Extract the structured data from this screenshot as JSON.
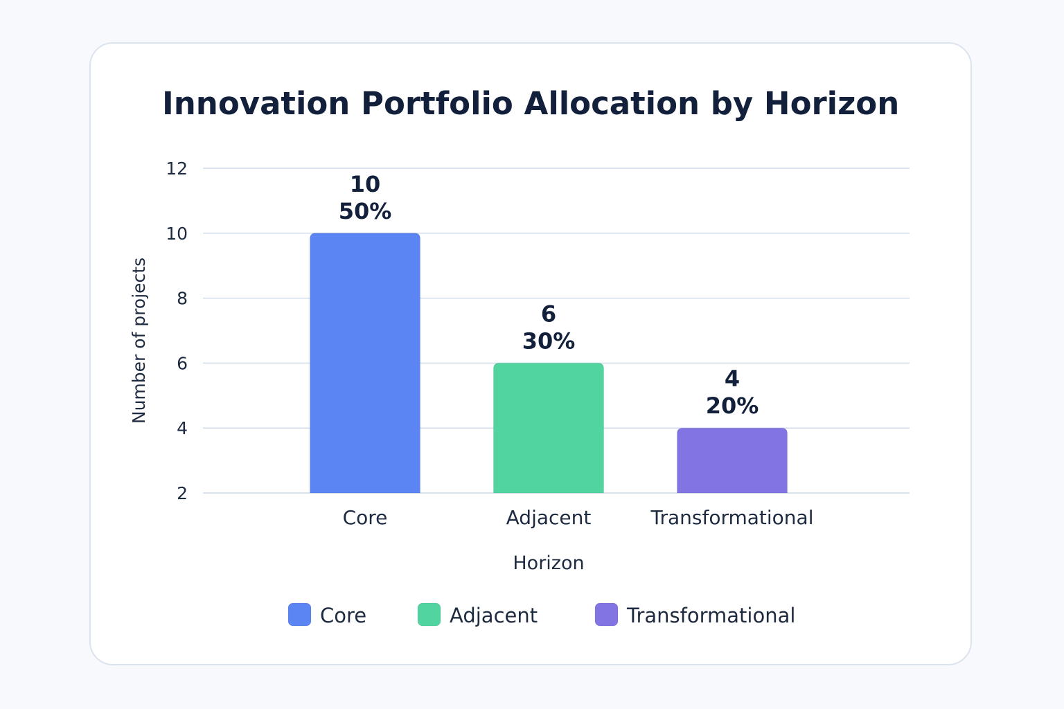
{
  "chart_data": {
    "type": "bar",
    "title": "Innovation Portfolio Allocation by Horizon",
    "xlabel": "Horizon",
    "ylabel": "Number of projects",
    "categories": [
      "Core",
      "Adjacent",
      "Transformational"
    ],
    "values": [
      10,
      6,
      4
    ],
    "percent_labels": [
      "50%",
      "30%",
      "20%"
    ],
    "value_labels": [
      "10",
      "6",
      "4"
    ],
    "colors": [
      "#5b85f2",
      "#52d4a0",
      "#8275e3"
    ],
    "yticks": [
      "2",
      "4",
      "6",
      "8",
      "10",
      "12"
    ],
    "ylim": [
      2,
      12
    ],
    "grid": true,
    "legend_position": "bottom",
    "legend": [
      "Core",
      "Adjacent",
      "Transformational"
    ]
  }
}
